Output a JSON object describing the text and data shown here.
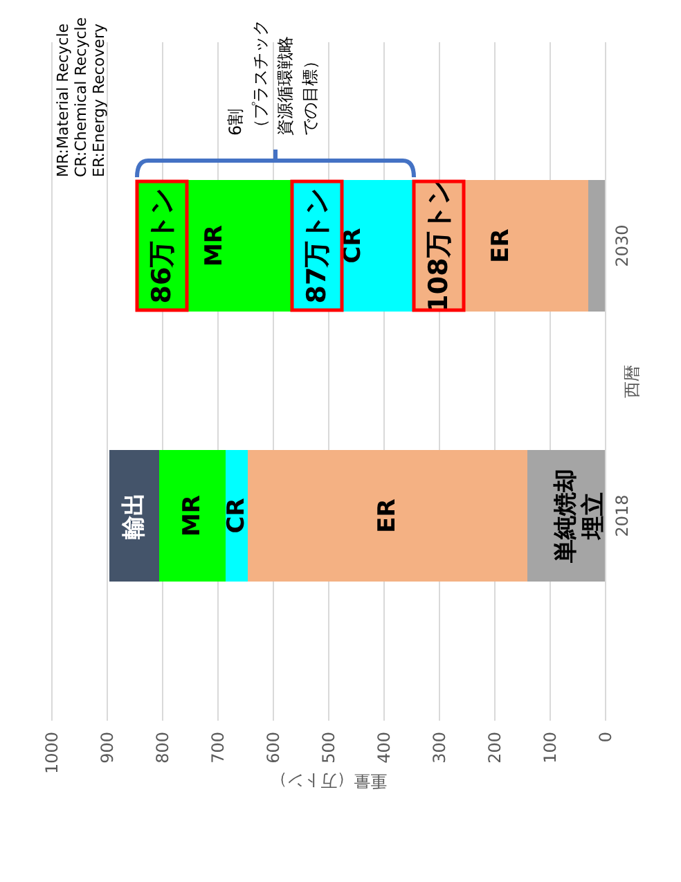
{
  "chart_data": {
    "type": "bar",
    "stacked": true,
    "orientation": "horizontal",
    "xlabel": "重量（万トン）",
    "ylabel": "西暦",
    "categories": [
      "2030",
      "2018"
    ],
    "series": [
      {
        "name": "単純焼却埋立",
        "color": "#a5a5a5",
        "values": [
          30,
          140
        ]
      },
      {
        "name": "ER",
        "color": "#f4b183",
        "values": [
          315,
          505
        ]
      },
      {
        "name": "CR",
        "color": "#00ffff",
        "values": [
          220,
          40
        ]
      },
      {
        "name": "MR",
        "color": "#00ff00",
        "values": [
          280,
          120
        ]
      },
      {
        "name": "輸出",
        "color": "#44546a",
        "values": [
          null,
          90
        ]
      }
    ],
    "xlim": [
      1000,
      0
    ],
    "xticks": [
      0,
      100,
      200,
      300,
      400,
      500,
      600,
      700,
      800,
      900,
      1000
    ],
    "grid": "x",
    "annotations": [
      "MR:Material Recycle",
      "CR:Chemical Recycle",
      "ER:Energy Recovery",
      "86万トン",
      "87万トン",
      "108万トン",
      "6割（プラスチック資源循環戦略での目標）"
    ]
  }
}
